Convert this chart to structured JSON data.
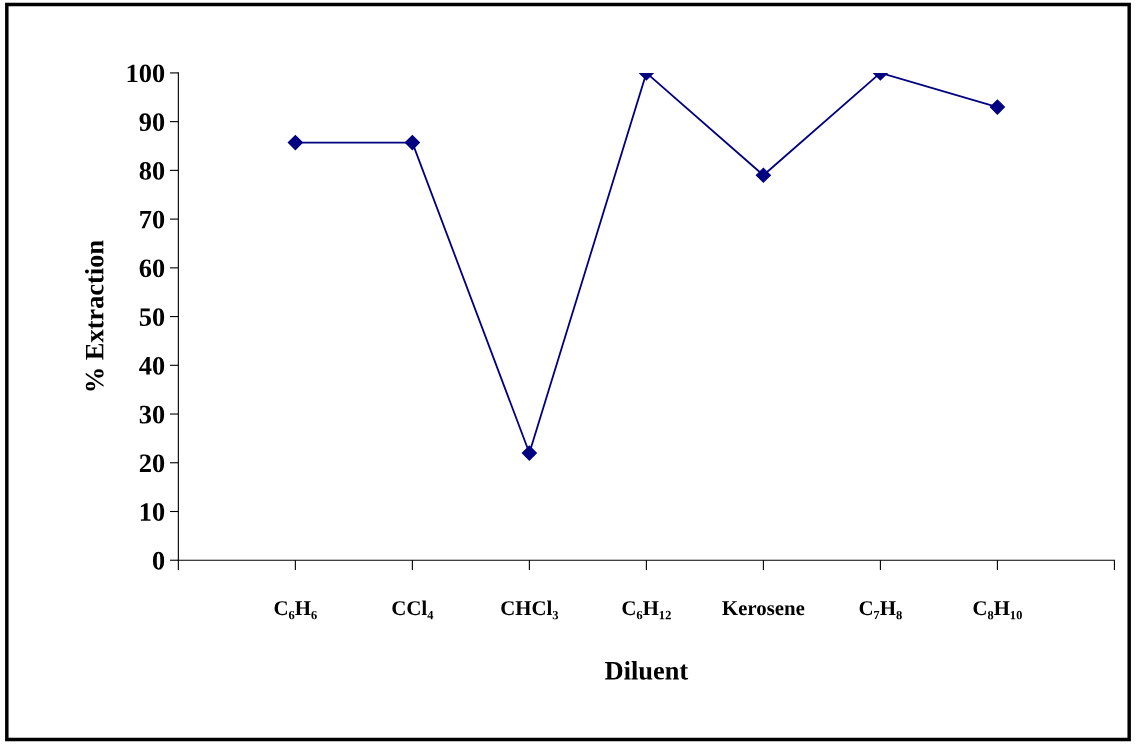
{
  "chart_data": {
    "type": "line",
    "xlabel": "Diluent",
    "ylabel": "% Extraction",
    "categories": [
      "C₆H₆",
      "CCl₄",
      "CHCl₃",
      "C₆H₁₂",
      "Kerosene",
      "C₇H₈",
      "C₈H₁₀"
    ],
    "series": [
      {
        "color": "#000080",
        "values": [
          85.7,
          85.7,
          22,
          100,
          79,
          100,
          93
        ]
      }
    ],
    "ylim": [
      0,
      100
    ],
    "yticks": [
      0,
      10,
      20,
      30,
      40,
      50,
      60,
      70,
      80,
      90,
      100
    ],
    "marker": "diamond",
    "line_style": "solid",
    "grid": false,
    "legend": false
  }
}
